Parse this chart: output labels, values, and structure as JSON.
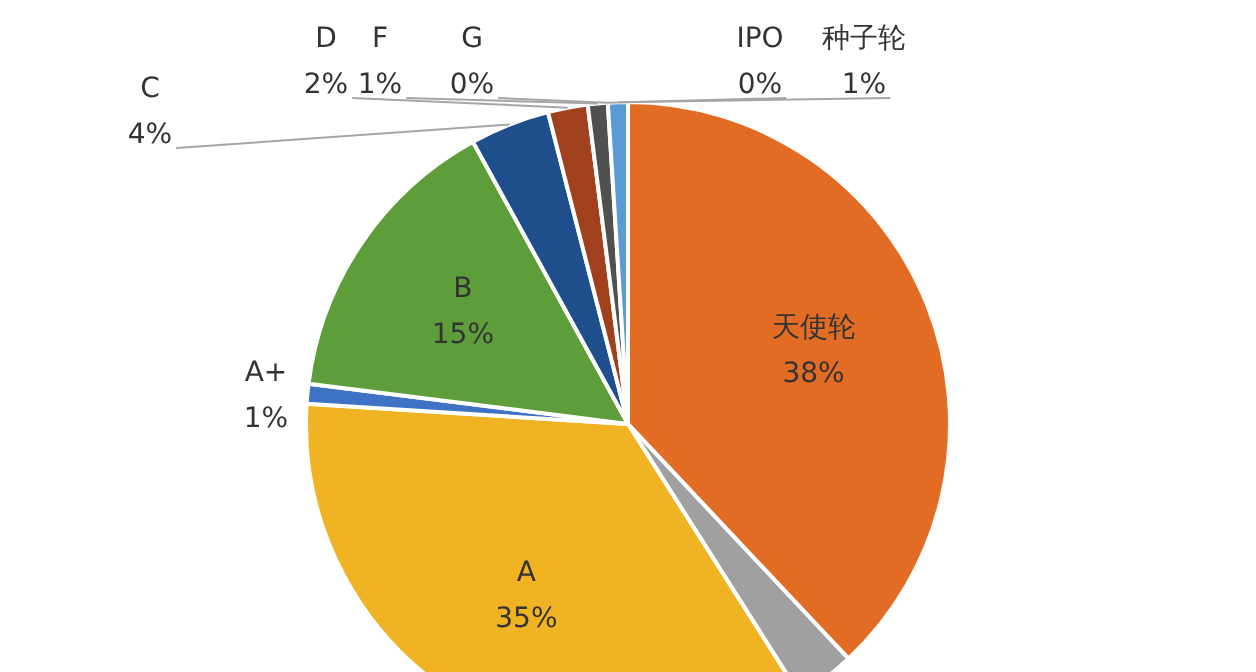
{
  "chart_data": {
    "type": "pie",
    "categories": [
      "天使轮",
      null,
      "A",
      "A+",
      "B",
      "C",
      "D",
      "F",
      "G",
      "IPO",
      "种子轮"
    ],
    "values": [
      38,
      3,
      35,
      1,
      15,
      4,
      2,
      1,
      0,
      0,
      1
    ],
    "value_labels": [
      "38%",
      null,
      "35%",
      "1%",
      "15%",
      "4%",
      "2%",
      "1%",
      "0%",
      "0%",
      "1%"
    ],
    "colors": [
      "#e36c24",
      "#a0a0a0",
      "#f0b323",
      "#3e72c4",
      "#5e9e3a",
      "#1f4e8c",
      "#a0401c",
      "#505050",
      "#8a7a2a",
      "#1a2a5a",
      "#5b9bd5"
    ],
    "legend": false
  }
}
